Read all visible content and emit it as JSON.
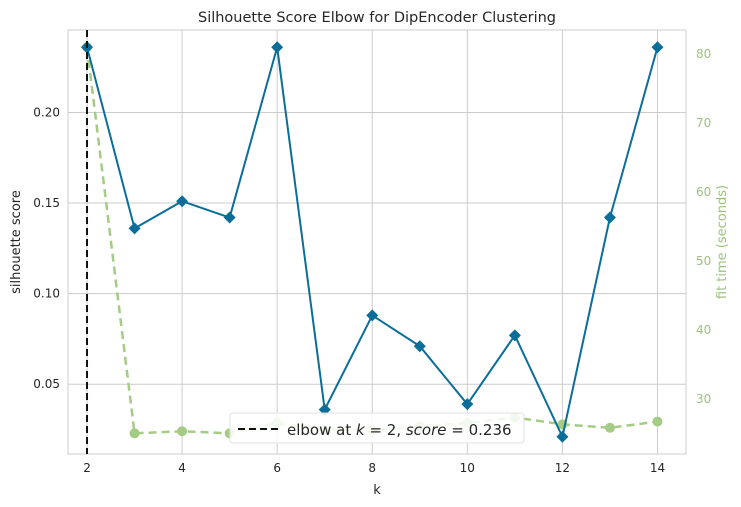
{
  "chart_data": {
    "type": "line",
    "title": "Silhouette Score Elbow for DipEncoder Clustering",
    "xlabel": "k",
    "ylabel": "silhouette score",
    "y2label": "fit time (seconds)",
    "x": [
      2,
      3,
      4,
      5,
      6,
      7,
      8,
      9,
      10,
      11,
      12,
      13,
      14
    ],
    "xlim": [
      1.6,
      14.6
    ],
    "xticks": [
      2,
      4,
      6,
      8,
      10,
      12,
      14
    ],
    "ylim": [
      0.0115,
      0.2455
    ],
    "yticks": [
      0.05,
      0.1,
      0.15,
      0.2
    ],
    "y2lim": [
      22,
      83.5
    ],
    "y2ticks": [
      30,
      40,
      50,
      60,
      70,
      80
    ],
    "grid": true,
    "series": [
      {
        "axis": "left",
        "color": "#0b6e99",
        "marker": "diamond",
        "values": [
          0.236,
          0.136,
          0.151,
          0.142,
          0.236,
          0.036,
          0.088,
          0.071,
          0.039,
          0.077,
          0.021,
          0.142,
          0.236
        ]
      },
      {
        "axis": "right",
        "color": "#a5cc84",
        "marker": "circle",
        "dashed": true,
        "values": [
          81,
          25,
          25.3,
          25,
          26.5,
          25.5,
          25.5,
          26,
          26.5,
          27.3,
          26.3,
          25.8,
          26.7
        ]
      }
    ],
    "elbow": {
      "k": 2,
      "score": 0.236
    },
    "legend": {
      "position": "bottom-center",
      "text_prefix": "elbow at ",
      "k_symbol": "k",
      "k_value": " = 2, ",
      "score_symbol": "score",
      "score_value": " = 0.236"
    }
  }
}
